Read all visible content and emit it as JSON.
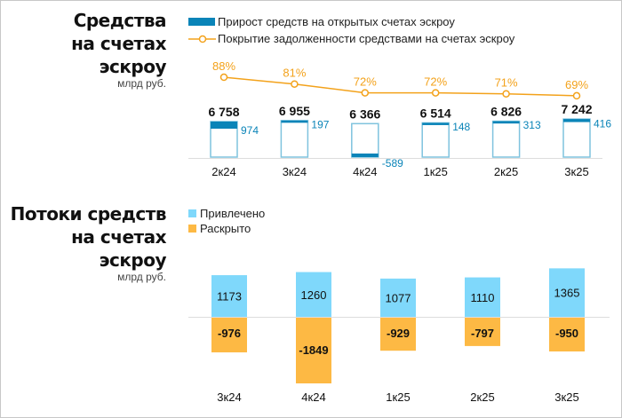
{
  "colors": {
    "increase": "#0a84b8",
    "bar_outline": "#7fc3de",
    "coverage_line": "#f3a21b",
    "inflow": "#7fd8fb",
    "outflow": "#fdb944",
    "axis": "#dddddd",
    "text": "#111111"
  },
  "chart_data": [
    {
      "type": "bar",
      "title_lines": [
        "Средства",
        "на счетах",
        "эскроу"
      ],
      "unit": "млрд руб.",
      "legend": {
        "increase": "Прирост средств на открытых счетах эскроу",
        "coverage": "Покрытие задолженности средствами на счетах эскроу"
      },
      "categories": [
        "2к24",
        "3к24",
        "4к24",
        "1к25",
        "2к25",
        "3к25"
      ],
      "balance": [
        6758,
        6955,
        6366,
        6514,
        6826,
        7242
      ],
      "balance_labels": [
        "6 758",
        "6 955",
        "6 366",
        "6 514",
        "6 826",
        "7 242"
      ],
      "increase": [
        974,
        197,
        -589,
        148,
        313,
        416
      ],
      "increase_labels": [
        "974",
        "197",
        "-589",
        "148",
        "313",
        "416"
      ],
      "coverage_pct": [
        88,
        81,
        72,
        72,
        71,
        69
      ],
      "coverage_labels": [
        "88%",
        "81%",
        "72%",
        "72%",
        "71%",
        "69%"
      ]
    },
    {
      "type": "bar",
      "title_lines": [
        "Потоки средств",
        "на счетах",
        "эскроу"
      ],
      "unit": "млрд руб.",
      "legend": {
        "inflow": "Привлечено",
        "outflow": "Раскрыто"
      },
      "categories": [
        "3к24",
        "4к24",
        "1к25",
        "2к25",
        "3к25"
      ],
      "series": [
        {
          "name": "Привлечено",
          "values": [
            1173,
            1260,
            1077,
            1110,
            1365
          ],
          "labels": [
            "1173",
            "1260",
            "1077",
            "1110",
            "1365"
          ]
        },
        {
          "name": "Раскрыто",
          "values": [
            -976,
            -1849,
            -929,
            -797,
            -950
          ],
          "labels": [
            "-976",
            "-1849",
            "-929",
            "-797",
            "-950"
          ]
        }
      ]
    }
  ]
}
